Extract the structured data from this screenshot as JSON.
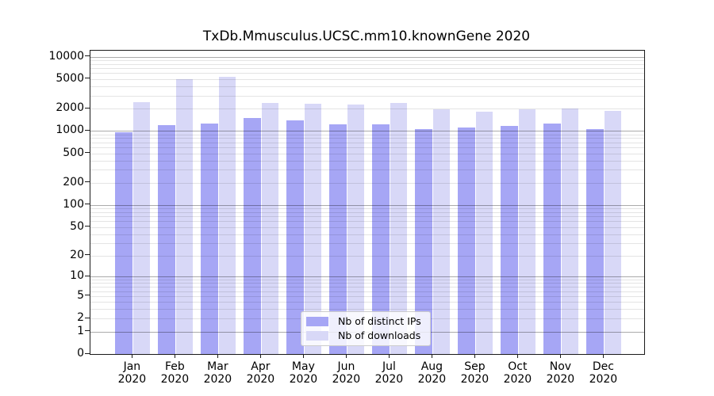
{
  "colors": {
    "distinct_ips": "#a6a6f5",
    "downloads": "#d8d8f7",
    "axis": "#1a1a1a",
    "legend_border": "#cccccc",
    "background": "#ffffff"
  },
  "chart_data": {
    "type": "bar",
    "title": "TxDb.Mmusculus.UCSC.mm10.knownGene 2020",
    "xlabel": "",
    "ylabel": "",
    "categories": [
      "Jan",
      "Feb",
      "Mar",
      "Apr",
      "May",
      "Jun",
      "Jul",
      "Aug",
      "Sep",
      "Oct",
      "Nov",
      "Dec"
    ],
    "year_label": "2020",
    "series": [
      {
        "name": "Nb of distinct IPs",
        "color_key": "distinct_ips",
        "values": [
          970,
          1190,
          1260,
          1480,
          1390,
          1240,
          1240,
          1070,
          1100,
          1160,
          1260,
          1070
        ]
      },
      {
        "name": "Nb of downloads",
        "color_key": "downloads",
        "values": [
          2460,
          4940,
          5400,
          2400,
          2320,
          2270,
          2380,
          1960,
          1820,
          1970,
          2000,
          1850
        ]
      }
    ],
    "y_ticks": [
      0,
      1,
      2,
      5,
      10,
      20,
      50,
      100,
      200,
      500,
      1000,
      2000,
      5000,
      10000
    ],
    "y_scale": "log10(1+value)",
    "y_axis_max_log": 4.08,
    "grid": {
      "major_at": [
        1,
        10,
        100,
        1000,
        10000
      ],
      "minor_multiples": [
        2,
        3,
        4,
        5,
        6,
        7,
        8,
        9
      ],
      "minor_decades": [
        1,
        10,
        100,
        1000
      ]
    },
    "legend_position": "lower-center"
  }
}
